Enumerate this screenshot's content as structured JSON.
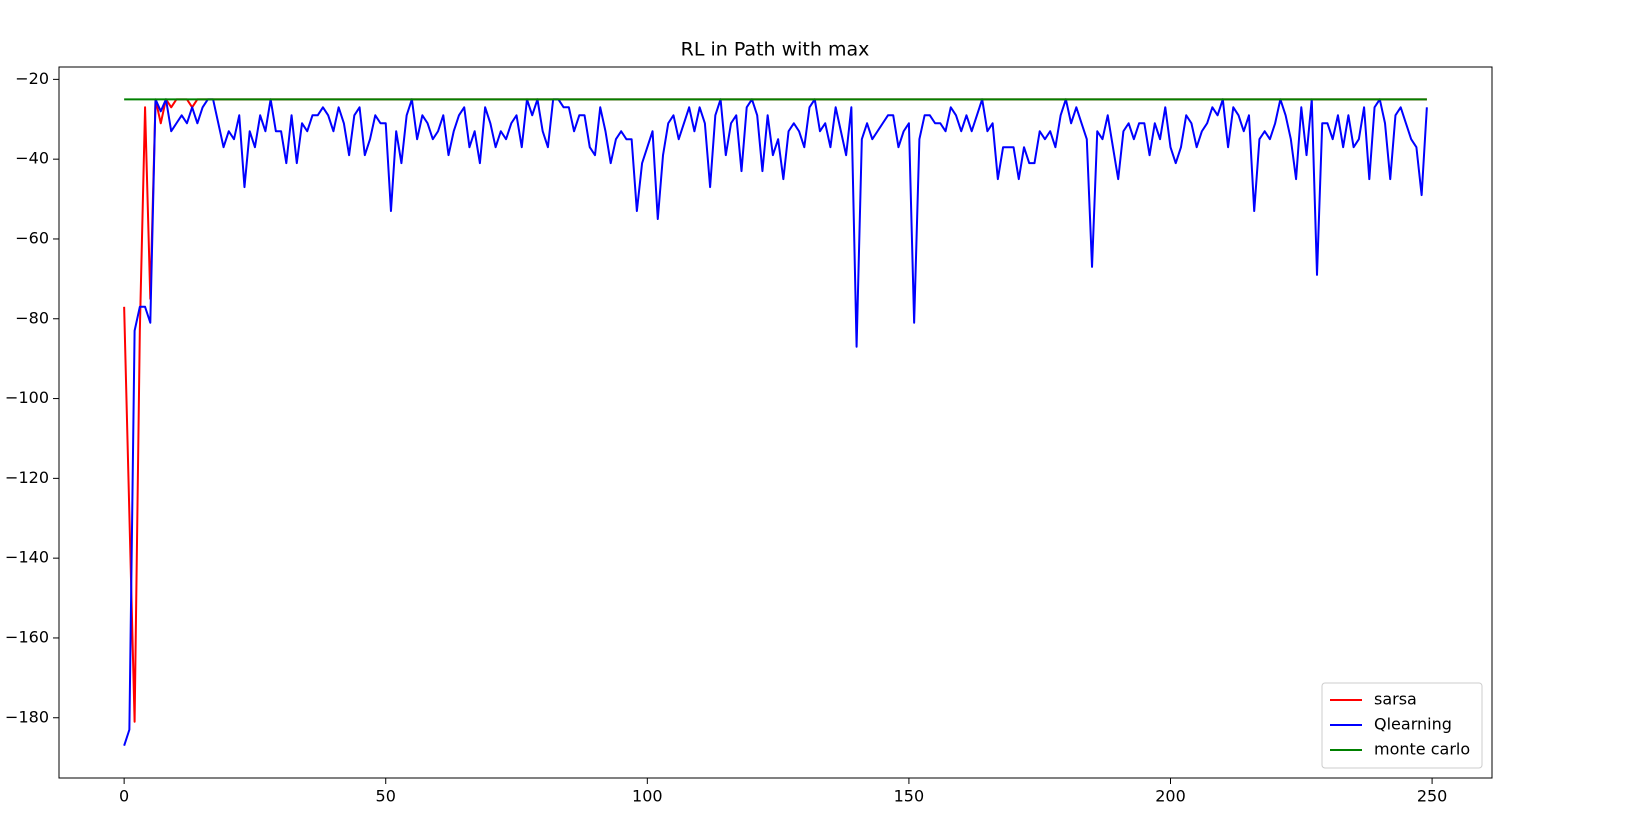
{
  "chart_data": {
    "type": "line",
    "title": "RL in Path with max",
    "xlim": [
      -12.45,
      261.45
    ],
    "xticks": [
      0,
      50,
      100,
      150,
      200,
      250
    ],
    "ylim": [
      -195.1,
      -16.9
    ],
    "yticks": [
      {
        "value": -20,
        "label": "−20"
      },
      {
        "value": -40,
        "label": "−40"
      },
      {
        "value": -60,
        "label": "−60"
      },
      {
        "value": -80,
        "label": "−80"
      },
      {
        "value": -100,
        "label": "−100"
      },
      {
        "value": -120,
        "label": "−120"
      },
      {
        "value": -140,
        "label": "−140"
      },
      {
        "value": -160,
        "label": "−160"
      },
      {
        "value": -180,
        "label": "−180"
      }
    ],
    "legend": "lower right",
    "series": [
      {
        "name": "sarsa",
        "color": "#ff0000",
        "values": [
          -77,
          -129,
          -181,
          -83,
          -27,
          -75,
          -25,
          -31,
          -25,
          -27,
          -25,
          -25,
          -25,
          -27,
          -25,
          -25,
          -25,
          -25,
          -25,
          -25,
          -25,
          -25,
          -25,
          -25,
          -25,
          -25,
          -25,
          -25,
          -25,
          -25,
          -25,
          -25,
          -25,
          -25,
          -25,
          -25,
          -25,
          -25,
          -25,
          -25,
          -25,
          -25,
          -25,
          -25,
          -25,
          -25,
          -25,
          -25,
          -25,
          -25,
          -25,
          -25,
          -25,
          -25,
          -25,
          -25,
          -25,
          -25,
          -25,
          -25,
          -25,
          -25,
          -25,
          -25,
          -25,
          -25,
          -25,
          -25,
          -25,
          -25,
          -25,
          -25,
          -25,
          -25,
          -25,
          -25,
          -25,
          -25,
          -25,
          -25,
          -25,
          -25,
          -25,
          -25,
          -25,
          -25,
          -25,
          -25,
          -25,
          -25,
          -25,
          -25,
          -25,
          -25,
          -25,
          -25,
          -25,
          -25,
          -25,
          -25,
          -25,
          -25,
          -25,
          -25,
          -25,
          -25,
          -25,
          -25,
          -25,
          -25,
          -25,
          -25,
          -25,
          -25,
          -25,
          -25,
          -25,
          -25,
          -25,
          -25,
          -25,
          -25,
          -25,
          -25,
          -25,
          -25,
          -25,
          -25,
          -25,
          -25,
          -25,
          -25,
          -25,
          -25,
          -25,
          -25,
          -25,
          -25,
          -25,
          -25,
          -25,
          -25,
          -25,
          -25,
          -25,
          -25,
          -25,
          -25,
          -25,
          -25,
          -25,
          -25,
          -25,
          -25,
          -25,
          -25,
          -25,
          -25,
          -25,
          -25,
          -25,
          -25,
          -25,
          -25,
          -25,
          -25,
          -25,
          -25,
          -25,
          -25,
          -25,
          -25,
          -25,
          -25,
          -25,
          -25,
          -25,
          -25,
          -25,
          -25,
          -25,
          -25,
          -25,
          -25,
          -25,
          -25,
          -25,
          -25,
          -25,
          -25,
          -25,
          -25,
          -25,
          -25,
          -25,
          -25,
          -25,
          -25,
          -25,
          -25,
          -25,
          -25,
          -25,
          -25,
          -25,
          -25,
          -25,
          -25,
          -25,
          -25,
          -25,
          -25,
          -25,
          -25,
          -25,
          -25,
          -25,
          -25,
          -25,
          -25,
          -25,
          -25,
          -25,
          -25,
          -25,
          -25,
          -25,
          -25,
          -25,
          -25,
          -25,
          -25,
          -25,
          -25,
          -25,
          -25,
          -25,
          -25,
          -25,
          -25,
          -25,
          -25,
          -25,
          -25,
          -25,
          -25,
          -25,
          -25,
          -25,
          -25
        ]
      },
      {
        "name": "Qlearning",
        "color": "#0000ff",
        "values": [
          -187,
          -183,
          -83,
          -77,
          -77,
          -81,
          -25,
          -28,
          -25,
          -33,
          -31,
          -29,
          -31,
          -27,
          -31,
          -27,
          -25,
          -25,
          -31,
          -37,
          -33,
          -35,
          -29,
          -47,
          -33,
          -37,
          -29,
          -33,
          -25,
          -33,
          -33,
          -41,
          -29,
          -41,
          -31,
          -33,
          -29,
          -29,
          -27,
          -29,
          -33,
          -27,
          -31,
          -39,
          -29,
          -27,
          -39,
          -35,
          -29,
          -31,
          -31,
          -53,
          -33,
          -41,
          -29,
          -25,
          -35,
          -29,
          -31,
          -35,
          -33,
          -29,
          -39,
          -33,
          -29,
          -27,
          -37,
          -33,
          -41,
          -27,
          -31,
          -37,
          -33,
          -35,
          -31,
          -29,
          -37,
          -25,
          -29,
          -25,
          -33,
          -37,
          -25,
          -25,
          -27,
          -27,
          -33,
          -29,
          -29,
          -37,
          -39,
          -27,
          -33,
          -41,
          -35,
          -33,
          -35,
          -35,
          -53,
          -41,
          -37,
          -33,
          -55,
          -39,
          -31,
          -29,
          -35,
          -31,
          -27,
          -33,
          -27,
          -31,
          -47,
          -29,
          -25,
          -39,
          -31,
          -29,
          -43,
          -27,
          -25,
          -29,
          -43,
          -29,
          -39,
          -35,
          -45,
          -33,
          -31,
          -33,
          -37,
          -27,
          -25,
          -33,
          -31,
          -37,
          -27,
          -33,
          -39,
          -27,
          -87,
          -35,
          -31,
          -35,
          -33,
          -31,
          -29,
          -29,
          -37,
          -33,
          -31,
          -81,
          -35,
          -29,
          -29,
          -31,
          -31,
          -33,
          -27,
          -29,
          -33,
          -29,
          -33,
          -29,
          -25,
          -33,
          -31,
          -45,
          -37,
          -37,
          -37,
          -45,
          -37,
          -41,
          -41,
          -33,
          -35,
          -33,
          -37,
          -29,
          -25,
          -31,
          -27,
          -31,
          -35,
          -67,
          -33,
          -35,
          -29,
          -37,
          -45,
          -33,
          -31,
          -35,
          -31,
          -31,
          -39,
          -31,
          -35,
          -27,
          -37,
          -41,
          -37,
          -29,
          -31,
          -37,
          -33,
          -31,
          -27,
          -29,
          -25,
          -37,
          -27,
          -29,
          -33,
          -29,
          -53,
          -35,
          -33,
          -35,
          -31,
          -25,
          -29,
          -35,
          -45,
          -27,
          -39,
          -25,
          -69,
          -31,
          -31,
          -35,
          -29,
          -37,
          -29,
          -37,
          -35,
          -27,
          -45,
          -27,
          -25,
          -31,
          -45,
          -29,
          -27,
          -31,
          -35,
          -37,
          -49,
          -27
        ]
      },
      {
        "name": "monte carlo",
        "color": "#008000",
        "values": [
          -25,
          -25,
          -25,
          -25,
          -25,
          -25,
          -25,
          -25,
          -25,
          -25,
          -25,
          -25,
          -25,
          -25,
          -25,
          -25,
          -25,
          -25,
          -25,
          -25,
          -25,
          -25,
          -25,
          -25,
          -25,
          -25,
          -25,
          -25,
          -25,
          -25,
          -25,
          -25,
          -25,
          -25,
          -25,
          -25,
          -25,
          -25,
          -25,
          -25,
          -25,
          -25,
          -25,
          -25,
          -25,
          -25,
          -25,
          -25,
          -25,
          -25,
          -25,
          -25,
          -25,
          -25,
          -25,
          -25,
          -25,
          -25,
          -25,
          -25,
          -25,
          -25,
          -25,
          -25,
          -25,
          -25,
          -25,
          -25,
          -25,
          -25,
          -25,
          -25,
          -25,
          -25,
          -25,
          -25,
          -25,
          -25,
          -25,
          -25,
          -25,
          -25,
          -25,
          -25,
          -25,
          -25,
          -25,
          -25,
          -25,
          -25,
          -25,
          -25,
          -25,
          -25,
          -25,
          -25,
          -25,
          -25,
          -25,
          -25,
          -25,
          -25,
          -25,
          -25,
          -25,
          -25,
          -25,
          -25,
          -25,
          -25,
          -25,
          -25,
          -25,
          -25,
          -25,
          -25,
          -25,
          -25,
          -25,
          -25,
          -25,
          -25,
          -25,
          -25,
          -25,
          -25,
          -25,
          -25,
          -25,
          -25,
          -25,
          -25,
          -25,
          -25,
          -25,
          -25,
          -25,
          -25,
          -25,
          -25,
          -25,
          -25,
          -25,
          -25,
          -25,
          -25,
          -25,
          -25,
          -25,
          -25,
          -25,
          -25,
          -25,
          -25,
          -25,
          -25,
          -25,
          -25,
          -25,
          -25,
          -25,
          -25,
          -25,
          -25,
          -25,
          -25,
          -25,
          -25,
          -25,
          -25,
          -25,
          -25,
          -25,
          -25,
          -25,
          -25,
          -25,
          -25,
          -25,
          -25,
          -25,
          -25,
          -25,
          -25,
          -25,
          -25,
          -25,
          -25,
          -25,
          -25,
          -25,
          -25,
          -25,
          -25,
          -25,
          -25,
          -25,
          -25,
          -25,
          -25,
          -25,
          -25,
          -25,
          -25,
          -25,
          -25,
          -25,
          -25,
          -25,
          -25,
          -25,
          -25,
          -25,
          -25,
          -25,
          -25,
          -25,
          -25,
          -25,
          -25,
          -25,
          -25,
          -25,
          -25,
          -25,
          -25,
          -25,
          -25,
          -25,
          -25,
          -25,
          -25,
          -25,
          -25,
          -25,
          -25,
          -25,
          -25,
          -25,
          -25,
          -25,
          -25,
          -25,
          -25,
          -25,
          -25,
          -25,
          -25,
          -25,
          -25
        ]
      }
    ]
  }
}
